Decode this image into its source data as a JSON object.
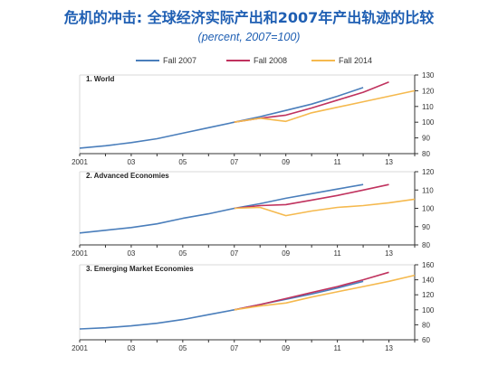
{
  "header": {
    "title": "危机的冲击: 全球经济实际产出和2007年产出轨迹的比较",
    "subtitle": "(percent, 2007=100)"
  },
  "legend": [
    {
      "label": "Fall 2007",
      "color": "#4a7ebb"
    },
    {
      "label": "Fall 2008",
      "color": "#c0325e"
    },
    {
      "label": "Fall 2014",
      "color": "#f5b94e"
    }
  ],
  "chart_data": [
    {
      "type": "line",
      "title": "1. World",
      "x_ticks": [
        "2001",
        "03",
        "05",
        "07",
        "09",
        "11",
        "13"
      ],
      "xlim": [
        2001,
        2014
      ],
      "ylim": [
        80,
        130
      ],
      "y_ticks": [
        80,
        90,
        100,
        110,
        120,
        130
      ],
      "series": [
        {
          "name": "Fall 2007",
          "color": "#4a7ebb",
          "x": [
            2001,
            2002,
            2003,
            2004,
            2005,
            2006,
            2007,
            2008,
            2009,
            2010,
            2011,
            2012
          ],
          "values": [
            83.5,
            85,
            87,
            89.5,
            93,
            96.5,
            100,
            103.5,
            107.5,
            111.5,
            116.5,
            122
          ]
        },
        {
          "name": "Fall 2008",
          "color": "#c0325e",
          "x": [
            2007,
            2008,
            2009,
            2010,
            2011,
            2012,
            2013
          ],
          "values": [
            100,
            102.5,
            104.5,
            109,
            114,
            119,
            125.5
          ]
        },
        {
          "name": "Fall 2014",
          "color": "#f5b94e",
          "x": [
            2007,
            2008,
            2009,
            2010,
            2011,
            2012,
            2013,
            2014
          ],
          "values": [
            100,
            102.5,
            100.5,
            106,
            109.5,
            113,
            116.5,
            120
          ]
        }
      ]
    },
    {
      "type": "line",
      "title": "2. Advanced Economies",
      "x_ticks": [
        "2001",
        "03",
        "05",
        "07",
        "09",
        "11",
        "13"
      ],
      "xlim": [
        2001,
        2014
      ],
      "ylim": [
        80,
        120
      ],
      "y_ticks": [
        80,
        90,
        100,
        110,
        120
      ],
      "series": [
        {
          "name": "Fall 2007",
          "color": "#4a7ebb",
          "x": [
            2001,
            2002,
            2003,
            2004,
            2005,
            2006,
            2007,
            2008,
            2009,
            2010,
            2011,
            2012
          ],
          "values": [
            86.5,
            88,
            89.5,
            91.5,
            94.5,
            97,
            100,
            102.5,
            105.5,
            108,
            110.5,
            113
          ]
        },
        {
          "name": "Fall 2008",
          "color": "#c0325e",
          "x": [
            2007,
            2008,
            2009,
            2010,
            2011,
            2012,
            2013
          ],
          "values": [
            100,
            101.5,
            102,
            104.5,
            107,
            110,
            113
          ]
        },
        {
          "name": "Fall 2014",
          "color": "#f5b94e",
          "x": [
            2007,
            2008,
            2009,
            2010,
            2011,
            2012,
            2013,
            2014
          ],
          "values": [
            100,
            100.5,
            96,
            98.5,
            100.5,
            101.5,
            103,
            105
          ]
        }
      ]
    },
    {
      "type": "line",
      "title": "3. Emerging Market Economies",
      "x_ticks": [
        "2001",
        "03",
        "05",
        "07",
        "09",
        "11",
        "13"
      ],
      "xlim": [
        2001,
        2014
      ],
      "ylim": [
        60,
        160
      ],
      "y_ticks": [
        60,
        80,
        100,
        120,
        140,
        160
      ],
      "series": [
        {
          "name": "Fall 2007",
          "color": "#4a7ebb",
          "x": [
            2001,
            2002,
            2003,
            2004,
            2005,
            2006,
            2007,
            2008,
            2009,
            2010,
            2011,
            2012
          ],
          "values": [
            74.5,
            76,
            78.5,
            82,
            87,
            93.5,
            100,
            107,
            114,
            121,
            129,
            138
          ]
        },
        {
          "name": "Fall 2008",
          "color": "#c0325e",
          "x": [
            2007,
            2008,
            2009,
            2010,
            2011,
            2012,
            2013
          ],
          "values": [
            100,
            107,
            115,
            123,
            131,
            140,
            150
          ]
        },
        {
          "name": "Fall 2014",
          "color": "#f5b94e",
          "x": [
            2007,
            2008,
            2009,
            2010,
            2011,
            2012,
            2013,
            2014
          ],
          "values": [
            100,
            105,
            109,
            117,
            124,
            131,
            138,
            146
          ]
        }
      ]
    }
  ]
}
